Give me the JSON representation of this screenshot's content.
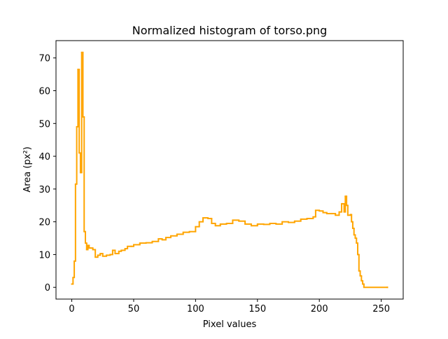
{
  "chart_data": {
    "type": "step",
    "title": "Normalized histogram of torso.png",
    "x_label": "Pixel values",
    "y_label": "Area (px²)",
    "x": [
      0,
      1,
      2,
      3,
      4,
      5,
      6,
      7,
      8,
      9,
      10,
      11,
      12,
      13,
      14,
      15,
      17,
      19,
      21,
      23,
      25,
      28,
      31,
      33,
      35,
      38,
      40,
      43,
      45,
      48,
      50,
      55,
      60,
      65,
      70,
      73,
      76,
      80,
      85,
      90,
      95,
      100,
      103,
      106,
      110,
      113,
      116,
      120,
      125,
      130,
      135,
      140,
      145,
      150,
      155,
      160,
      165,
      170,
      175,
      180,
      185,
      190,
      195,
      197,
      200,
      203,
      206,
      210,
      213,
      216,
      218,
      220,
      221,
      222,
      223,
      225,
      226,
      227,
      228,
      229,
      230,
      231,
      232,
      233,
      234,
      235,
      236,
      255
    ],
    "values": [
      1,
      3,
      8,
      31.5,
      49,
      66.5,
      41,
      35,
      71.7,
      52,
      17,
      13.5,
      11.5,
      12.8,
      12,
      12,
      11.5,
      9.2,
      9.8,
      10.3,
      9.5,
      9.8,
      10,
      11.3,
      10.3,
      11,
      11.3,
      11.8,
      12.5,
      12.5,
      13,
      13.5,
      13.6,
      14,
      14.8,
      14.5,
      15.2,
      15.7,
      16.2,
      16.8,
      17,
      18.5,
      20,
      21.2,
      21,
      19.5,
      18.8,
      19.3,
      19.5,
      20.5,
      20.2,
      19.3,
      18.8,
      19.3,
      19.2,
      19.5,
      19.3,
      20,
      19.8,
      20.2,
      20.8,
      21,
      21.5,
      23.5,
      23.3,
      22.8,
      22.5,
      22.5,
      22,
      23,
      25.5,
      23,
      27.8,
      25,
      22,
      22.2,
      20,
      18,
      16,
      15,
      13.5,
      10,
      5,
      3.5,
      2,
      1,
      0,
      0
    ],
    "color": "#ffa500",
    "xlim": [
      -12.75,
      267.75
    ],
    "xticks": [
      0,
      50,
      100,
      150,
      200,
      250
    ],
    "ylim": [
      -3.585,
      75.285
    ],
    "yticks": [
      0,
      10,
      20,
      30,
      40,
      50,
      60,
      70
    ]
  }
}
